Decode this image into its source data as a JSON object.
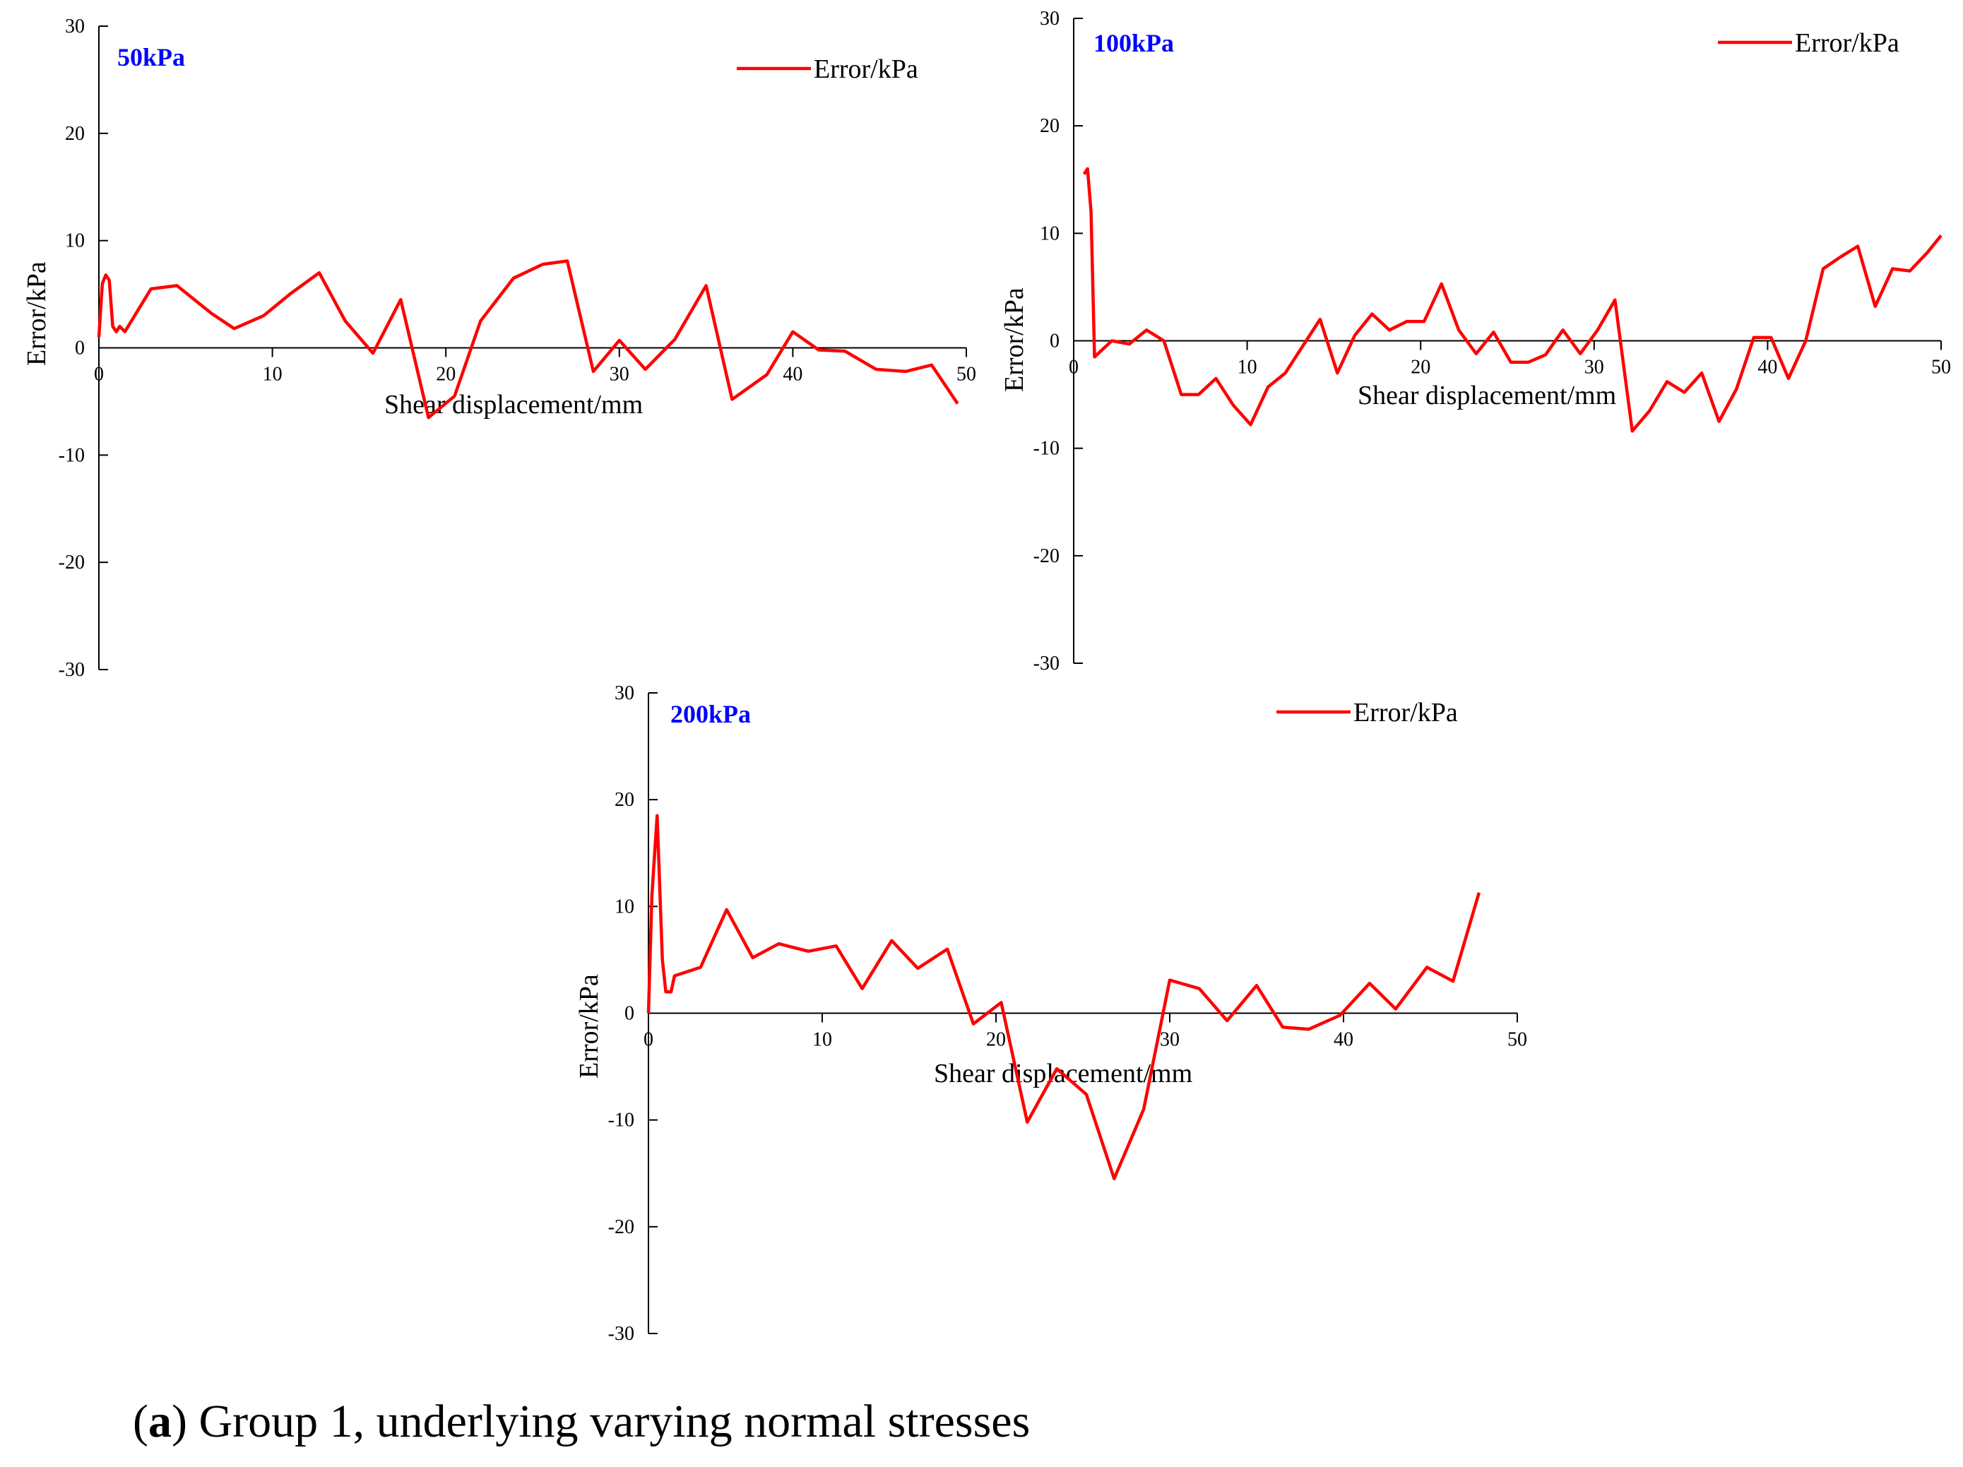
{
  "caption": {
    "letter": "a",
    "text": "Group 1, underlying varying normal stresses"
  },
  "colors": {
    "series": "#ff0000",
    "panel_title": "#0000ff",
    "axis": "#000000"
  },
  "chart_data": [
    {
      "type": "line",
      "title": "50kPa",
      "xlabel": "Shear displacement/mm",
      "ylabel": "Error/kPa",
      "xlim": [
        0,
        50
      ],
      "ylim": [
        -30,
        30
      ],
      "xticks": [
        0,
        10,
        20,
        30,
        40,
        50
      ],
      "yticks": [
        30,
        20,
        10,
        0,
        -10,
        -20,
        -30
      ],
      "legend": {
        "position": "top-right",
        "entries": [
          "Error/kPa"
        ]
      },
      "series": [
        {
          "name": "Error/kPa",
          "x": [
            0.0,
            0.2,
            0.4,
            0.6,
            0.8,
            1.0,
            1.2,
            1.5,
            3.0,
            4.5,
            6.5,
            7.8,
            9.5,
            11.0,
            12.7,
            14.2,
            15.8,
            17.4,
            19.0,
            20.5,
            22.0,
            23.9,
            25.6,
            27.0,
            28.5,
            30.0,
            31.5,
            33.2,
            35.0,
            36.5,
            38.5,
            40.0,
            41.5,
            43.0,
            44.8,
            46.5,
            48.0,
            49.5
          ],
          "y": [
            1.0,
            6.0,
            6.8,
            6.3,
            2.0,
            1.5,
            2.0,
            1.5,
            5.5,
            5.8,
            3.2,
            1.8,
            3.0,
            5.0,
            7.0,
            2.5,
            -0.5,
            4.5,
            -6.5,
            -4.5,
            2.5,
            6.5,
            7.8,
            8.1,
            -2.2,
            0.7,
            -2.0,
            0.8,
            5.8,
            -4.8,
            -2.5,
            1.5,
            -0.2,
            -0.3,
            -2.0,
            -2.2,
            -1.6,
            -5.2
          ]
        }
      ]
    },
    {
      "type": "line",
      "title": "100kPa",
      "xlabel": "Shear displacement/mm",
      "ylabel": "Error/kPa",
      "xlim": [
        0,
        50
      ],
      "ylim": [
        -30,
        30
      ],
      "xticks": [
        0,
        10,
        20,
        30,
        40,
        50
      ],
      "yticks": [
        30,
        20,
        10,
        0,
        -10,
        -20,
        -30
      ],
      "legend": {
        "position": "top-right",
        "entries": [
          "Error/kPa"
        ]
      },
      "series": [
        {
          "name": "Error/kPa",
          "x": [
            0.6,
            0.8,
            1.0,
            1.2,
            2.2,
            3.2,
            4.2,
            5.2,
            6.2,
            7.2,
            8.2,
            9.2,
            10.2,
            11.2,
            12.2,
            13.2,
            14.2,
            15.2,
            16.2,
            17.2,
            18.2,
            19.2,
            20.2,
            21.2,
            22.2,
            23.2,
            24.2,
            25.2,
            26.2,
            27.2,
            28.2,
            29.2,
            30.2,
            31.2,
            32.2,
            33.2,
            34.2,
            35.2,
            36.2,
            37.2,
            38.2,
            39.2,
            40.2,
            41.2,
            42.2,
            43.2,
            44.2,
            45.2,
            46.2,
            47.2,
            48.2,
            49.2,
            50.0
          ],
          "y": [
            15.5,
            16.0,
            12.0,
            -1.5,
            0.0,
            -0.3,
            1.0,
            0.0,
            -5.0,
            -5.0,
            -3.5,
            -6.0,
            -7.8,
            -4.3,
            -3.0,
            -0.5,
            2.0,
            -3.0,
            0.5,
            2.5,
            1.0,
            1.8,
            1.8,
            5.3,
            1.0,
            -1.2,
            0.8,
            -2.0,
            -2.0,
            -1.3,
            1.0,
            -1.2,
            1.0,
            3.8,
            -8.4,
            -6.5,
            -3.8,
            -4.8,
            -3.0,
            -7.5,
            -4.5,
            0.3,
            0.3,
            -3.5,
            0.0,
            6.7,
            7.8,
            8.8,
            3.2,
            6.7,
            6.5,
            8.2,
            9.8
          ]
        }
      ]
    },
    {
      "type": "line",
      "title": "200kPa",
      "xlabel": "Shear displacement/mm",
      "ylabel": "Error/kPa",
      "xlim": [
        0,
        50
      ],
      "ylim": [
        -30,
        30
      ],
      "xticks": [
        0,
        10,
        20,
        30,
        40,
        50
      ],
      "yticks": [
        30,
        20,
        10,
        0,
        -10,
        -20,
        -30
      ],
      "legend": {
        "position": "top-right",
        "entries": [
          "Error/kPa"
        ]
      },
      "series": [
        {
          "name": "Error/kPa",
          "x": [
            0.0,
            0.2,
            0.4,
            0.5,
            0.6,
            0.8,
            1.0,
            1.3,
            1.5,
            3.0,
            4.5,
            6.0,
            7.5,
            9.2,
            10.8,
            12.3,
            14.0,
            15.5,
            17.2,
            18.7,
            20.3,
            21.8,
            23.5,
            25.2,
            26.8,
            28.5,
            30.0,
            31.7,
            33.3,
            35.0,
            36.5,
            38.0,
            39.8,
            41.5,
            43.0,
            44.8,
            46.3,
            47.8
          ],
          "y": [
            0.0,
            11.0,
            16.0,
            18.5,
            14.0,
            5.0,
            2.0,
            2.0,
            3.5,
            4.3,
            9.7,
            5.2,
            6.5,
            5.8,
            6.3,
            2.3,
            6.8,
            4.2,
            6.0,
            -1.0,
            1.0,
            -10.2,
            -5.2,
            -7.6,
            -15.5,
            -9.0,
            3.1,
            2.3,
            -0.7,
            2.6,
            -1.3,
            -1.5,
            -0.2,
            2.8,
            0.4,
            4.3,
            3.0,
            11.3
          ]
        }
      ]
    }
  ]
}
